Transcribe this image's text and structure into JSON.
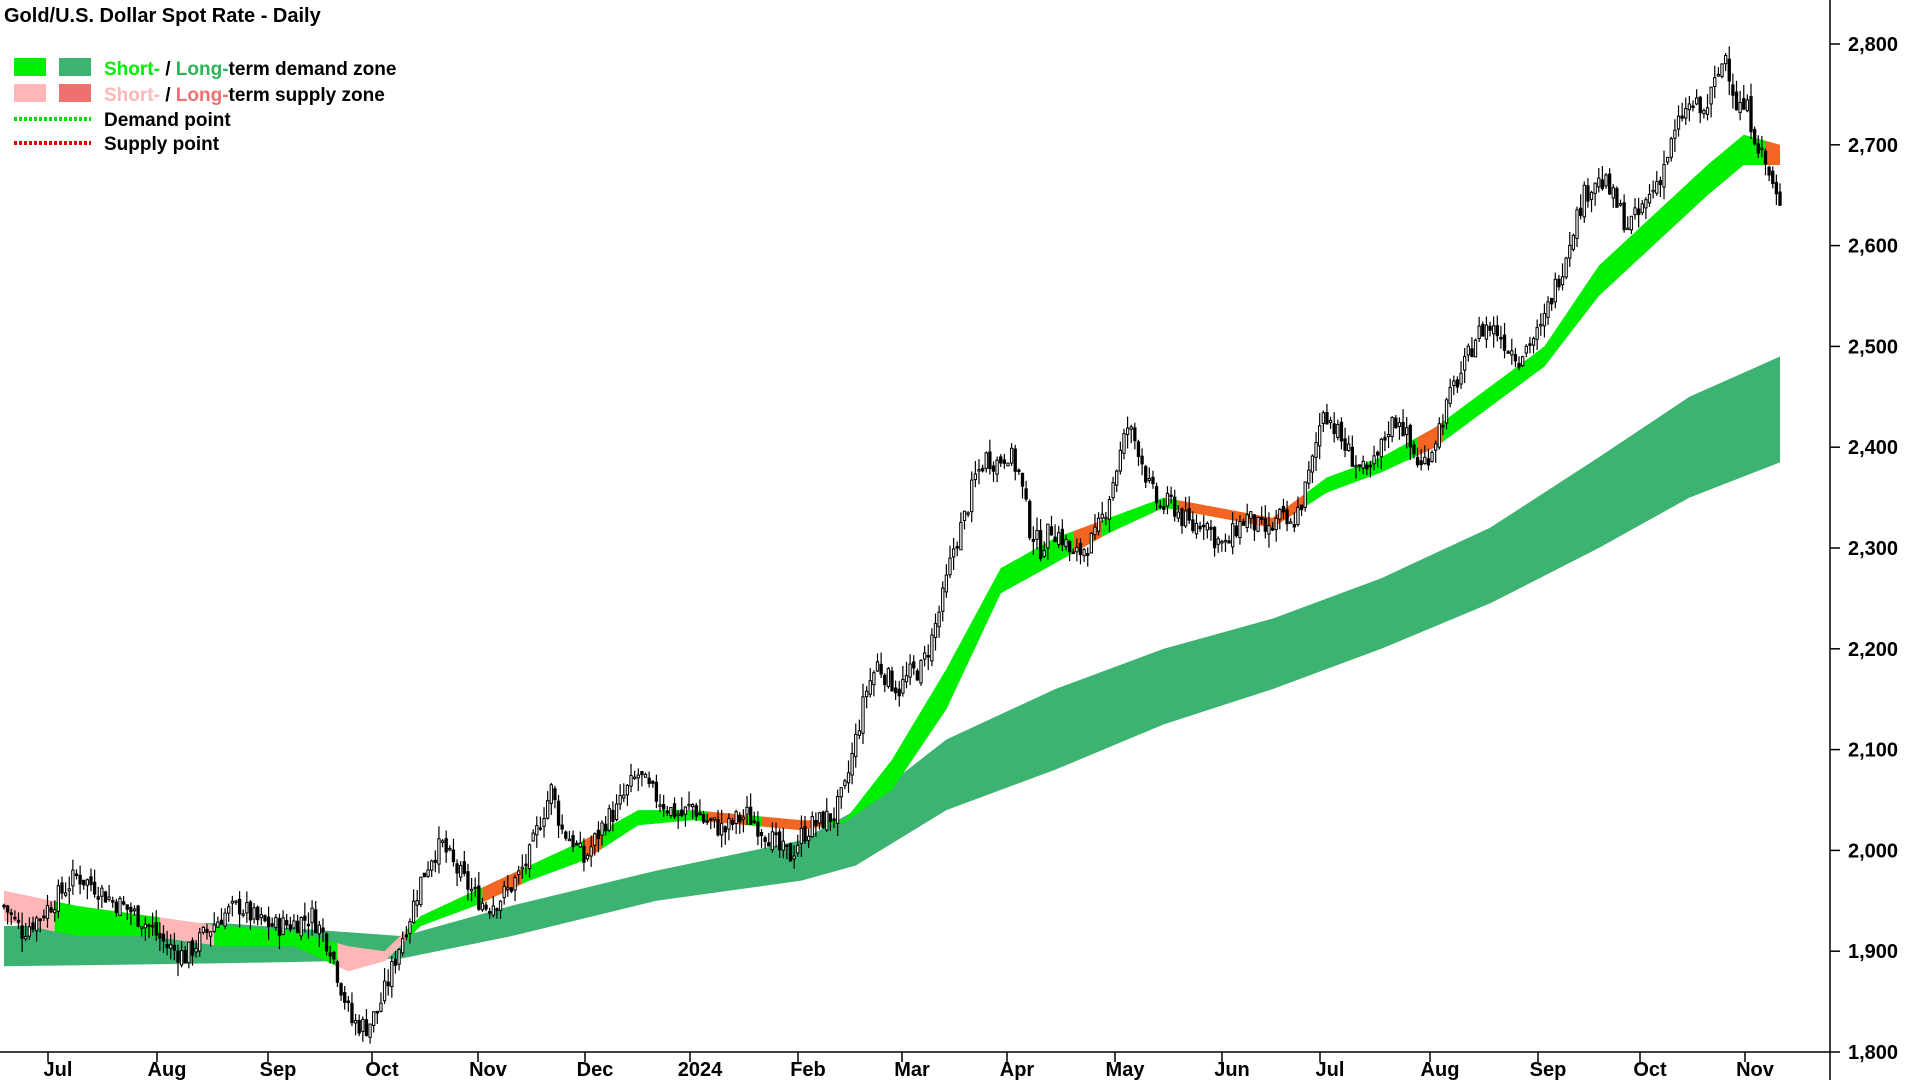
{
  "title": "Gold/U.S. Dollar Spot Rate - Daily",
  "legend": {
    "row1": {
      "short": "Short-",
      "sep": " / ",
      "long": "Long-",
      "rest": "term demand zone"
    },
    "row2": {
      "short": "Short-",
      "sep": " / ",
      "long": "Long-",
      "rest": "term supply zone"
    },
    "row3": "Demand point",
    "row4": "Supply point"
  },
  "colors": {
    "short_demand": "#00ee00",
    "long_demand": "#3cb371",
    "short_supply": "#ffb6b6",
    "long_supply": "#f07070",
    "supply_band": "#f26522",
    "demand_point": "#00dd00",
    "supply_point": "#e00000",
    "candle_up": "#ffffff",
    "candle_down": "#000000"
  },
  "chart_data": {
    "type": "candlestick",
    "title": "Gold/U.S. Dollar Spot Rate - Daily",
    "x_tick_labels": [
      "Jul",
      "Aug",
      "Sep",
      "Oct",
      "Nov",
      "Dec",
      "2024",
      "Feb",
      "Mar",
      "Apr",
      "May",
      "Jun",
      "Jul",
      "Aug",
      "Sep",
      "Oct",
      "Nov"
    ],
    "y_tick_labels": [
      "2,800",
      "2,700",
      "2,600",
      "2,500",
      "2,400",
      "2,300",
      "2,200",
      "2,100",
      "2,000",
      "1,900",
      "1,800"
    ],
    "y_ticks": [
      2800,
      2700,
      2600,
      2500,
      2400,
      2300,
      2200,
      2100,
      2000,
      1900,
      1800
    ],
    "ylim": [
      1790,
      2840
    ],
    "grid": false,
    "y_axis_position": "right",
    "close_path": [
      [
        0,
        1945
      ],
      [
        5,
        1920
      ],
      [
        10,
        1935
      ],
      [
        15,
        1955
      ],
      [
        20,
        1975
      ],
      [
        25,
        1965
      ],
      [
        30,
        1950
      ],
      [
        35,
        1940
      ],
      [
        40,
        1925
      ],
      [
        45,
        1905
      ],
      [
        50,
        1895
      ],
      [
        55,
        1915
      ],
      [
        60,
        1935
      ],
      [
        65,
        1945
      ],
      [
        70,
        1930
      ],
      [
        75,
        1925
      ],
      [
        80,
        1928
      ],
      [
        85,
        1935
      ],
      [
        90,
        1905
      ],
      [
        93,
        1865
      ],
      [
        96,
        1830
      ],
      [
        100,
        1825
      ],
      [
        103,
        1840
      ],
      [
        106,
        1870
      ],
      [
        109,
        1905
      ],
      [
        112,
        1935
      ],
      [
        115,
        1970
      ],
      [
        118,
        1995
      ],
      [
        121,
        2005
      ],
      [
        124,
        1985
      ],
      [
        127,
        1970
      ],
      [
        130,
        1955
      ],
      [
        133,
        1945
      ],
      [
        136,
        1950
      ],
      [
        139,
        1960
      ],
      [
        142,
        1975
      ],
      [
        145,
        1995
      ],
      [
        148,
        2030
      ],
      [
        151,
        2060
      ],
      [
        154,
        2020
      ],
      [
        157,
        2010
      ],
      [
        160,
        1990
      ],
      [
        163,
        2010
      ],
      [
        166,
        2030
      ],
      [
        169,
        2040
      ],
      [
        172,
        2060
      ],
      [
        175,
        2075
      ],
      [
        178,
        2060
      ],
      [
        181,
        2050
      ],
      [
        184,
        2040
      ],
      [
        187,
        2035
      ],
      [
        190,
        2045
      ],
      [
        193,
        2030
      ],
      [
        196,
        2025
      ],
      [
        199,
        2020
      ],
      [
        202,
        2030
      ],
      [
        205,
        2035
      ],
      [
        208,
        2025
      ],
      [
        211,
        2015
      ],
      [
        214,
        2000
      ],
      [
        217,
        1995
      ],
      [
        220,
        2015
      ],
      [
        223,
        2025
      ],
      [
        226,
        2030
      ],
      [
        229,
        2035
      ],
      [
        232,
        2060
      ],
      [
        235,
        2110
      ],
      [
        238,
        2160
      ],
      [
        241,
        2185
      ],
      [
        244,
        2170
      ],
      [
        247,
        2160
      ],
      [
        250,
        2175
      ],
      [
        253,
        2180
      ],
      [
        256,
        2210
      ],
      [
        259,
        2250
      ],
      [
        262,
        2300
      ],
      [
        265,
        2330
      ],
      [
        268,
        2370
      ],
      [
        271,
        2390
      ],
      [
        274,
        2385
      ],
      [
        277,
        2395
      ],
      [
        280,
        2375
      ],
      [
        283,
        2320
      ],
      [
        286,
        2300
      ],
      [
        289,
        2320
      ],
      [
        292,
        2310
      ],
      [
        295,
        2290
      ],
      [
        298,
        2300
      ],
      [
        301,
        2310
      ],
      [
        304,
        2340
      ],
      [
        307,
        2380
      ],
      [
        310,
        2420
      ],
      [
        313,
        2400
      ],
      [
        316,
        2360
      ],
      [
        319,
        2340
      ],
      [
        322,
        2345
      ],
      [
        325,
        2330
      ],
      [
        328,
        2320
      ],
      [
        331,
        2330
      ],
      [
        334,
        2310
      ],
      [
        337,
        2300
      ],
      [
        340,
        2320
      ],
      [
        343,
        2330
      ],
      [
        346,
        2320
      ],
      [
        349,
        2315
      ],
      [
        352,
        2330
      ],
      [
        355,
        2320
      ],
      [
        358,
        2345
      ],
      [
        361,
        2385
      ],
      [
        364,
        2440
      ],
      [
        367,
        2420
      ],
      [
        370,
        2400
      ],
      [
        373,
        2385
      ],
      [
        376,
        2370
      ],
      [
        379,
        2390
      ],
      [
        382,
        2420
      ],
      [
        385,
        2430
      ],
      [
        388,
        2400
      ],
      [
        391,
        2380
      ],
      [
        394,
        2400
      ],
      [
        397,
        2430
      ],
      [
        400,
        2460
      ],
      [
        403,
        2480
      ],
      [
        406,
        2510
      ],
      [
        409,
        2520
      ],
      [
        412,
        2515
      ],
      [
        415,
        2500
      ],
      [
        418,
        2490
      ],
      [
        421,
        2505
      ],
      [
        424,
        2515
      ],
      [
        427,
        2550
      ],
      [
        430,
        2580
      ],
      [
        433,
        2620
      ],
      [
        436,
        2650
      ],
      [
        439,
        2665
      ],
      [
        442,
        2660
      ],
      [
        445,
        2640
      ],
      [
        448,
        2620
      ],
      [
        451,
        2630
      ],
      [
        454,
        2650
      ],
      [
        457,
        2670
      ],
      [
        460,
        2700
      ],
      [
        463,
        2730
      ],
      [
        466,
        2740
      ],
      [
        469,
        2730
      ],
      [
        472,
        2760
      ],
      [
        475,
        2790
      ],
      [
        478,
        2740
      ],
      [
        481,
        2735
      ],
      [
        484,
        2700
      ],
      [
        487,
        2670
      ],
      [
        490,
        2635
      ]
    ],
    "bands": {
      "long_term_demand_zone": {
        "upper": [
          [
            0,
            1925
          ],
          [
            60,
            1928
          ],
          [
            90,
            1920
          ],
          [
            110,
            1915
          ],
          [
            140,
            1945
          ],
          [
            180,
            1980
          ],
          [
            220,
            2010
          ],
          [
            235,
            2040
          ],
          [
            260,
            2110
          ],
          [
            290,
            2160
          ],
          [
            320,
            2200
          ],
          [
            350,
            2230
          ],
          [
            380,
            2270
          ],
          [
            410,
            2320
          ],
          [
            440,
            2390
          ],
          [
            465,
            2450
          ],
          [
            490,
            2490
          ]
        ],
        "lower": [
          [
            0,
            1885
          ],
          [
            60,
            1888
          ],
          [
            90,
            1890
          ],
          [
            110,
            1893
          ],
          [
            140,
            1915
          ],
          [
            180,
            1950
          ],
          [
            220,
            1970
          ],
          [
            235,
            1985
          ],
          [
            260,
            2040
          ],
          [
            290,
            2080
          ],
          [
            320,
            2125
          ],
          [
            350,
            2160
          ],
          [
            380,
            2200
          ],
          [
            410,
            2245
          ],
          [
            440,
            2300
          ],
          [
            465,
            2350
          ],
          [
            490,
            2385
          ]
        ]
      },
      "short_term_zone": {
        "upper": [
          [
            0,
            1960
          ],
          [
            20,
            1945
          ],
          [
            40,
            1935
          ],
          [
            60,
            1925
          ],
          [
            80,
            1920
          ],
          [
            95,
            1905
          ],
          [
            105,
            1900
          ],
          [
            115,
            1935
          ],
          [
            130,
            1960
          ],
          [
            145,
            1985
          ],
          [
            160,
            2010
          ],
          [
            175,
            2040
          ],
          [
            190,
            2040
          ],
          [
            205,
            2035
          ],
          [
            220,
            2030
          ],
          [
            232,
            2030
          ],
          [
            245,
            2090
          ],
          [
            260,
            2180
          ],
          [
            275,
            2280
          ],
          [
            290,
            2310
          ],
          [
            305,
            2330
          ],
          [
            320,
            2350
          ],
          [
            335,
            2340
          ],
          [
            350,
            2330
          ],
          [
            365,
            2370
          ],
          [
            380,
            2390
          ],
          [
            395,
            2420
          ],
          [
            410,
            2460
          ],
          [
            425,
            2500
          ],
          [
            440,
            2580
          ],
          [
            455,
            2630
          ],
          [
            470,
            2680
          ],
          [
            480,
            2710
          ],
          [
            490,
            2700
          ]
        ],
        "lower": [
          [
            0,
            1930
          ],
          [
            20,
            1915
          ],
          [
            40,
            1915
          ],
          [
            60,
            1905
          ],
          [
            80,
            1905
          ],
          [
            95,
            1880
          ],
          [
            105,
            1890
          ],
          [
            115,
            1925
          ],
          [
            130,
            1945
          ],
          [
            145,
            1970
          ],
          [
            160,
            1990
          ],
          [
            175,
            2025
          ],
          [
            190,
            2030
          ],
          [
            205,
            2025
          ],
          [
            220,
            2020
          ],
          [
            232,
            2028
          ],
          [
            245,
            2060
          ],
          [
            260,
            2140
          ],
          [
            275,
            2255
          ],
          [
            290,
            2285
          ],
          [
            305,
            2315
          ],
          [
            320,
            2340
          ],
          [
            335,
            2330
          ],
          [
            350,
            2320
          ],
          [
            365,
            2355
          ],
          [
            380,
            2375
          ],
          [
            395,
            2400
          ],
          [
            410,
            2440
          ],
          [
            425,
            2480
          ],
          [
            440,
            2550
          ],
          [
            455,
            2600
          ],
          [
            470,
            2650
          ],
          [
            480,
            2680
          ],
          [
            490,
            2680
          ]
        ]
      }
    }
  }
}
